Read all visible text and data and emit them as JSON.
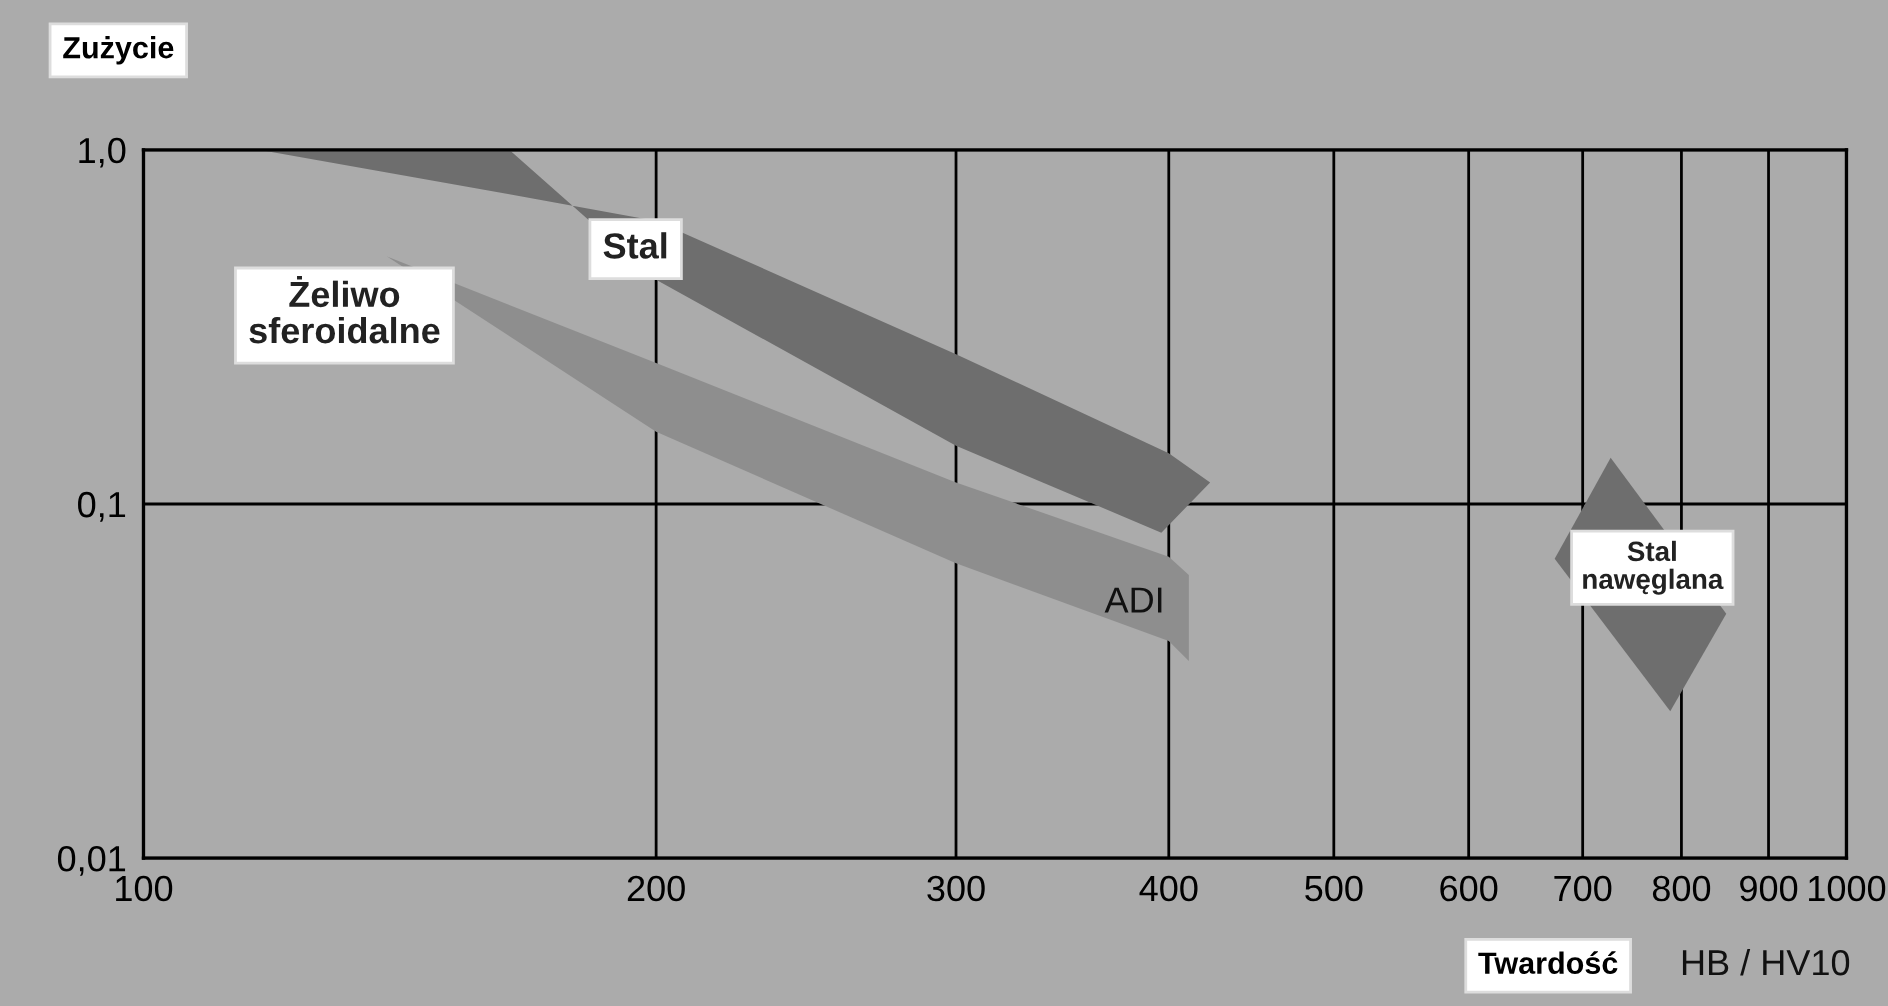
{
  "chart_data": {
    "type": "area",
    "log": "xy",
    "xlim": [
      100,
      1000
    ],
    "ylim": [
      0.01,
      1
    ],
    "xticks": [
      100,
      200,
      300,
      400,
      500,
      600,
      700,
      800,
      900,
      1000
    ],
    "yticks": [
      {
        "value": 1,
        "label": "1,0"
      },
      {
        "value": 0.1,
        "label": "0,1"
      },
      {
        "value": 0.01,
        "label": "0,01"
      }
    ],
    "grid": true,
    "ylabel": "Zużycie",
    "xlabel": "Twardość",
    "annotations": [
      "HB / HV10",
      "ADI"
    ],
    "series": [
      {
        "name": "Stal",
        "color": "#6e6e6e",
        "x": [
          117,
          164,
          200,
          300,
          400,
          423,
          396,
          300,
          200,
          164
        ],
        "values": [
          1.0,
          0.75,
          0.63,
          0.265,
          0.139,
          0.115,
          0.083,
          0.146,
          0.43,
          1.0
        ]
      },
      {
        "name": "Żeliwo\nsferoidalne",
        "color": "#8e8e8e",
        "x": [
          139,
          200,
          300,
          400,
          411,
          411,
          400,
          300,
          200
        ],
        "values": [
          0.5,
          0.25,
          0.115,
          0.071,
          0.063,
          0.036,
          0.041,
          0.068,
          0.16
        ]
      },
      {
        "name": "Stal\nnawęglana",
        "color": "#6e6e6e",
        "x": [
          674,
          727,
          850,
          788
        ],
        "values": [
          0.07,
          0.135,
          0.049,
          0.026
        ]
      }
    ]
  }
}
